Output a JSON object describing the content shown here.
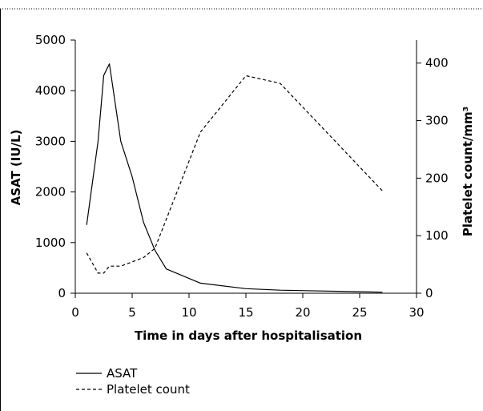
{
  "caption": "",
  "chart_data": {
    "type": "line",
    "title": "",
    "xlabel": "Time in days after hospitalisation",
    "ylabel": "ASAT (IU/L)",
    "ylabel_right": "Platelet count/mm³",
    "xlim": [
      0,
      30
    ],
    "ylim": [
      0,
      5000
    ],
    "ylim_right": [
      0,
      440
    ],
    "x_ticks": [
      "0",
      "5",
      "10",
      "15",
      "20",
      "25",
      "30"
    ],
    "y_ticks": [
      "0",
      "1000",
      "2000",
      "3000",
      "4000",
      "5000"
    ],
    "y_ticks_right": [
      "0",
      "100",
      "200",
      "300",
      "400"
    ],
    "grid": false,
    "legend_placement": "bottom-left",
    "series": [
      {
        "name": "ASAT",
        "axis": "left",
        "style": "solid",
        "points": [
          [
            1,
            1350
          ],
          [
            2,
            3000
          ],
          [
            2.5,
            4300
          ],
          [
            3,
            4530
          ],
          [
            4,
            3000
          ],
          [
            5,
            2300
          ],
          [
            6,
            1400
          ],
          [
            7,
            850
          ],
          [
            8,
            480
          ],
          [
            11,
            200
          ],
          [
            15,
            90
          ],
          [
            18,
            60
          ],
          [
            25,
            30
          ],
          [
            27,
            20
          ]
        ]
      },
      {
        "name": "Platelet count",
        "axis": "right",
        "style": "dashed",
        "points": [
          [
            1,
            70
          ],
          [
            2,
            35
          ],
          [
            2.5,
            35
          ],
          [
            3,
            47
          ],
          [
            4,
            47
          ],
          [
            6,
            62
          ],
          [
            7,
            78
          ],
          [
            11,
            280
          ],
          [
            15,
            378
          ],
          [
            18,
            365
          ],
          [
            27,
            178
          ]
        ]
      }
    ]
  }
}
